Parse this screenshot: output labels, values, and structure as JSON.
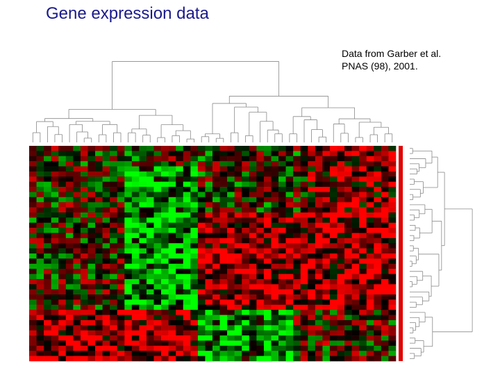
{
  "header": {
    "title": "Gene expression data"
  },
  "citation": {
    "lines": [
      "Data from Garber et al.",
      "PNAS (98), 2001."
    ]
  }
}
